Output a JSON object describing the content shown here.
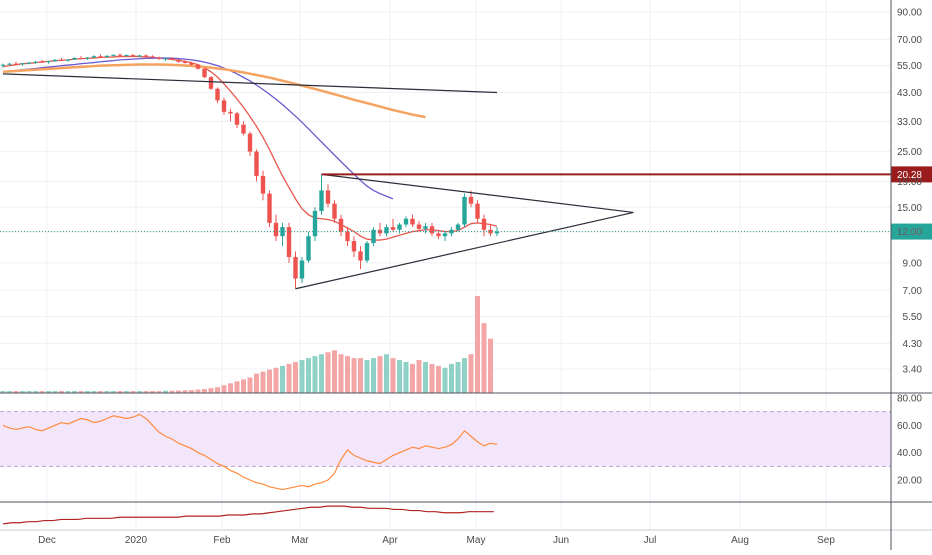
{
  "chart_data": {
    "type": "candlestick",
    "price_axis": {
      "scale": "log",
      "ticks": [
        "90.00",
        "70.00",
        "55.00",
        "43.00",
        "33.00",
        "25.00",
        "19.00",
        "15.00",
        "12.00",
        "9.00",
        "7.00",
        "5.50",
        "4.30",
        "3.40"
      ],
      "last_price_label": "12.00",
      "resistance_label": "20.28",
      "resistance_value": 20.28,
      "last_price_value": 12.0
    },
    "time_axis": {
      "labels": [
        "Dec",
        "2020",
        "Feb",
        "Mar",
        "Apr",
        "May",
        "Jun",
        "Jul",
        "Aug",
        "Sep"
      ]
    },
    "rsi_axis": {
      "ticks": [
        "80.00",
        "60.00",
        "40.00",
        "20.00"
      ],
      "upper_band": 70,
      "lower_band": 30
    },
    "candles": [
      [
        55,
        56,
        54,
        55.5
      ],
      [
        55.5,
        56.5,
        55,
        56
      ],
      [
        56,
        57,
        55.5,
        55.8
      ],
      [
        55.8,
        56.5,
        55,
        56.2
      ],
      [
        56.2,
        57,
        55.8,
        56.5
      ],
      [
        56.5,
        57.5,
        56,
        57
      ],
      [
        57,
        58,
        56.5,
        56.8
      ],
      [
        56.8,
        57.5,
        56,
        57.3
      ],
      [
        57.3,
        58.5,
        57,
        58
      ],
      [
        58,
        59,
        57.5,
        57.6
      ],
      [
        57.6,
        58.5,
        57,
        58.2
      ],
      [
        58.2,
        59.5,
        58,
        59
      ],
      [
        59,
        60,
        58.5,
        58.8
      ],
      [
        58.8,
        59.5,
        58,
        59.3
      ],
      [
        59.3,
        60.5,
        59,
        60
      ],
      [
        60,
        61,
        59.5,
        59.6
      ],
      [
        59.6,
        60.5,
        59,
        60.2
      ],
      [
        60.2,
        61,
        59.8,
        60.8
      ],
      [
        60.8,
        61.5,
        60,
        60.3
      ],
      [
        60.3,
        61,
        59.8,
        60.6
      ],
      [
        60.6,
        61.2,
        60,
        60.1
      ],
      [
        60.1,
        60.8,
        59.5,
        60.4
      ],
      [
        60.4,
        61,
        59.8,
        59.9
      ],
      [
        59.9,
        60.5,
        59,
        59.2
      ],
      [
        59.2,
        59.8,
        58,
        58.5
      ],
      [
        58.5,
        59.2,
        57.5,
        58.8
      ],
      [
        58.8,
        59.5,
        58,
        58.1
      ],
      [
        58.1,
        58.5,
        56.5,
        57
      ],
      [
        57,
        57.8,
        56,
        56.4
      ],
      [
        56.4,
        57,
        55,
        55.5
      ],
      [
        55.5,
        56,
        53,
        53.5
      ],
      [
        53.5,
        54,
        49,
        49.5
      ],
      [
        49.5,
        50,
        44,
        44.5
      ],
      [
        44.5,
        45,
        39,
        40
      ],
      [
        40,
        41,
        35,
        36
      ],
      [
        36,
        37,
        33,
        35.5
      ],
      [
        35.5,
        36,
        31,
        32
      ],
      [
        32,
        33,
        29,
        29.5
      ],
      [
        29.5,
        30,
        24,
        25
      ],
      [
        25,
        25.5,
        19,
        20
      ],
      [
        20,
        21,
        16,
        17
      ],
      [
        17,
        17.5,
        12.5,
        13
      ],
      [
        13,
        14,
        11,
        11.5
      ],
      [
        11.5,
        13,
        10.5,
        12.5
      ],
      [
        12.5,
        13,
        9,
        9.5
      ],
      [
        9.5,
        10,
        7.1,
        7.8
      ],
      [
        7.8,
        9.5,
        7.5,
        9.2
      ],
      [
        9.2,
        12,
        9,
        11.5
      ],
      [
        11.5,
        15,
        11,
        14.5
      ],
      [
        14.5,
        20.28,
        14,
        17.5
      ],
      [
        17.5,
        18.5,
        15,
        15.5
      ],
      [
        15.5,
        16,
        13,
        13.5
      ],
      [
        13.5,
        14,
        11.5,
        12
      ],
      [
        12,
        12.5,
        10.5,
        11
      ],
      [
        11,
        11.5,
        9.5,
        10
      ],
      [
        10,
        10.5,
        8.5,
        9.2
      ],
      [
        9.2,
        11,
        9,
        10.8
      ],
      [
        10.8,
        12.5,
        10.5,
        12.2
      ],
      [
        12.2,
        13,
        11.5,
        11.8
      ],
      [
        11.8,
        12.8,
        11.5,
        12.5
      ],
      [
        12.5,
        13.5,
        12,
        12.2
      ],
      [
        12.2,
        13,
        11.8,
        12.8
      ],
      [
        12.8,
        13.8,
        12.5,
        13.5
      ],
      [
        13.5,
        14,
        12.5,
        12.8
      ],
      [
        12.8,
        13.2,
        12,
        12.3
      ],
      [
        12.3,
        13,
        11.8,
        12.6
      ],
      [
        12.6,
        13,
        11.5,
        11.8
      ],
      [
        11.8,
        12.2,
        11.2,
        11.5
      ],
      [
        11.5,
        12,
        11,
        11.8
      ],
      [
        11.8,
        12.5,
        11.5,
        12.2
      ],
      [
        12.2,
        13,
        12,
        12.8
      ],
      [
        12.8,
        17,
        12.5,
        16.5
      ],
      [
        16.5,
        17.5,
        15,
        15.5
      ],
      [
        15.5,
        16,
        13,
        13.5
      ],
      [
        13.5,
        14,
        11.5,
        12.2
      ],
      [
        12.2,
        12.8,
        11.5,
        11.8
      ],
      [
        11.8,
        12.5,
        11.5,
        12.0
      ]
    ],
    "moving_averages": [
      {
        "name": "",
        "color": "#e8584f",
        "values": [
          54.5,
          55,
          55.5,
          56,
          56.2,
          56.5,
          57,
          57.2,
          57.5,
          57.8,
          58,
          58.4,
          58.6,
          58.8,
          59,
          59.3,
          59.5,
          59.6,
          59.8,
          59.8,
          59.9,
          59.8,
          59.6,
          59.3,
          59,
          58.6,
          58.2,
          57.8,
          57.2,
          56.5,
          55.5,
          54,
          52,
          49.5,
          46.5,
          43.5,
          40.5,
          37.5,
          34.5,
          31.5,
          28.5,
          25.5,
          22.5,
          20,
          18,
          16.2,
          14.8,
          14,
          13.6,
          13.5,
          13.4,
          13.2,
          12.8,
          12.4,
          12,
          11.5,
          11.2,
          11.1,
          11.1,
          11.2,
          11.4,
          11.6,
          11.8,
          12,
          12.1,
          12.2,
          12.2,
          12.1,
          12,
          12,
          12.1,
          12.5,
          12.9,
          13,
          12.9,
          12.8,
          12.6
        ]
      },
      {
        "name": "",
        "color": "#6a5acd",
        "values": [
          52,
          52.3,
          52.6,
          53,
          53.3,
          53.6,
          54,
          54.3,
          54.6,
          55,
          55.3,
          55.6,
          56,
          56.3,
          56.6,
          57,
          57.3,
          57.6,
          58,
          58.2,
          58.4,
          58.6,
          58.8,
          58.9,
          59,
          59,
          58.9,
          58.7,
          58.4,
          58,
          57.5,
          56.8,
          56,
          55,
          53.8,
          52.5,
          51,
          49.4,
          47.8,
          46,
          44.2,
          42.3,
          40.4,
          38.5,
          36.5,
          34.6,
          32.7,
          30.8,
          29,
          27.3,
          25.7,
          24.2,
          22.8,
          21.5,
          20.3,
          19.2,
          18.2,
          17.5,
          17,
          16.6,
          16.2
        ]
      },
      {
        "name": "",
        "color": "#f4a460",
        "values": [
          52,
          52.2,
          52.4,
          52.6,
          52.8,
          53,
          53.2,
          53.4,
          53.6,
          53.8,
          54,
          54.2,
          54.4,
          54.6,
          54.8,
          55,
          55.1,
          55.2,
          55.3,
          55.4,
          55.5,
          55.6,
          55.6,
          55.6,
          55.6,
          55.5,
          55.4,
          55.3,
          55.1,
          54.9,
          54.6,
          54.3,
          54,
          53.6,
          53.2,
          52.7,
          52.2,
          51.7,
          51.1,
          50.5,
          49.9,
          49.3,
          48.6,
          47.9,
          47.2,
          46.5,
          45.8,
          45.1,
          44.4,
          43.7,
          43,
          42.3,
          41.6,
          40.9,
          40.2,
          39.6,
          39,
          38.4,
          37.8,
          37.2,
          36.6,
          36.1,
          35.6,
          35.1,
          34.7,
          34.3
        ]
      }
    ],
    "trendlines": [
      {
        "from": [
          0,
          51
        ],
        "to": [
          76,
          43
        ],
        "color": "#2a2e39"
      },
      {
        "from": [
          49,
          20.28
        ],
        "to": [
          97,
          14.3
        ],
        "color": "#2a2e39"
      },
      {
        "from": [
          45,
          7.1
        ],
        "to": [
          97,
          14.3
        ],
        "color": "#2a2e39"
      }
    ],
    "volume": [
      1,
      1,
      1,
      1,
      1,
      1,
      1,
      1,
      1,
      1,
      1,
      1,
      1,
      1,
      1,
      1,
      1,
      1,
      1,
      1,
      1,
      1,
      1,
      1,
      1,
      1.2,
      1.2,
      1.3,
      1.4,
      1.5,
      1.8,
      2,
      2.5,
      3,
      4,
      5,
      6,
      7,
      8,
      10,
      11,
      12,
      13,
      14,
      15,
      16,
      17,
      18,
      19,
      20,
      21,
      22,
      20,
      19,
      18,
      18,
      17,
      18,
      19,
      20,
      18,
      17,
      16,
      15,
      17,
      16,
      15,
      14,
      13,
      15,
      16,
      18,
      20,
      50,
      36,
      28
    ],
    "rsi": [
      60,
      58,
      57,
      58,
      59,
      57,
      56,
      58,
      60,
      62,
      61,
      63,
      65,
      64,
      62,
      63,
      65,
      67,
      66,
      65,
      66,
      68,
      65,
      60,
      55,
      52,
      50,
      47,
      45,
      43,
      40,
      38,
      35,
      32,
      30,
      27,
      25,
      22,
      20,
      18,
      17,
      15,
      14,
      13,
      14,
      15,
      16,
      15,
      17,
      18,
      20,
      25,
      35,
      42,
      38,
      36,
      34,
      33,
      32,
      35,
      38,
      40,
      42,
      44,
      43,
      45,
      44,
      43,
      44,
      46,
      50,
      56,
      52,
      48,
      45,
      47,
      46
    ],
    "obv": [
      -5,
      -4,
      -4,
      -3,
      -3,
      -2,
      -2,
      -1,
      -1,
      -1,
      0,
      0,
      0,
      0,
      1,
      1,
      1,
      1,
      1,
      1,
      1,
      1,
      2,
      2,
      2,
      2,
      2,
      3,
      3,
      3,
      4,
      4,
      5,
      6,
      7,
      8,
      9,
      10,
      10,
      11,
      11,
      11,
      10,
      10,
      9,
      9,
      9,
      8,
      8,
      7,
      7,
      6,
      6,
      5,
      5,
      5,
      6,
      6,
      6,
      6
    ]
  }
}
